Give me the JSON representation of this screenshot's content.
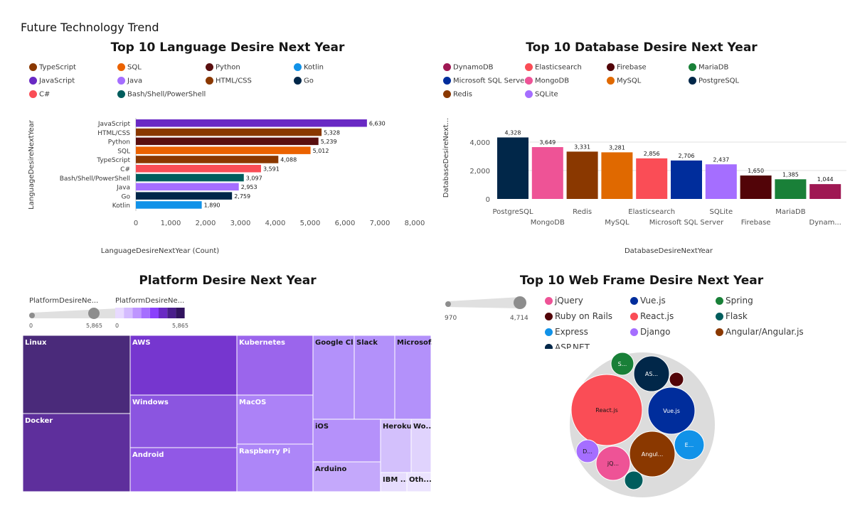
{
  "dashboard_title": "Future Technology Trend",
  "language_chart": {
    "title": "Top 10 Language Desire Next Year",
    "legend": [
      {
        "name": "TypeScript",
        "color": "#8a3800"
      },
      {
        "name": "SQL",
        "color": "#eb6200"
      },
      {
        "name": "Python",
        "color": "#5a0f0f"
      },
      {
        "name": "Kotlin",
        "color": "#1192e8"
      },
      {
        "name": "JavaScript",
        "color": "#6929c4"
      },
      {
        "name": "Java",
        "color": "#a56eff"
      },
      {
        "name": "HTML/CSS",
        "color": "#8a3800"
      },
      {
        "name": "Go",
        "color": "#012749"
      },
      {
        "name": "C#",
        "color": "#fa4d56"
      },
      {
        "name": "Bash/Shell/PowerShell",
        "color": "#005d5d"
      }
    ]
  },
  "database_chart": {
    "title": "Top 10 Database Desire Next Year",
    "legend": [
      {
        "name": "DynamoDB",
        "color": "#9f1853"
      },
      {
        "name": "Elasticsearch",
        "color": "#fa4d56"
      },
      {
        "name": "Firebase",
        "color": "#520408"
      },
      {
        "name": "MariaDB",
        "color": "#198038"
      },
      {
        "name": "Microsoft SQL Server",
        "color": "#002d9c"
      },
      {
        "name": "MongoDB",
        "color": "#ee5396"
      },
      {
        "name": "MySQL",
        "color": "#e06900"
      },
      {
        "name": "PostgreSQL",
        "color": "#012749"
      },
      {
        "name": "Redis",
        "color": "#8a3800"
      },
      {
        "name": "SQLite",
        "color": "#a56eff"
      }
    ]
  },
  "platform_chart": {
    "title": "Platform Desire Next Year",
    "size_legend_label": "PlatformDesireNe...",
    "color_legend_label": "PlatformDesireNe...",
    "range_min": "0",
    "range_max": "5,865"
  },
  "webframe_chart": {
    "title": "Top 10 Web Frame Desire Next Year",
    "size_min": "970",
    "size_max": "4,714",
    "legend": [
      {
        "name": "jQuery",
        "color": "#ee5396"
      },
      {
        "name": "Vue.js",
        "color": "#002d9c"
      },
      {
        "name": "Spring",
        "color": "#198038"
      },
      {
        "name": "Ruby on Rails",
        "color": "#520408"
      },
      {
        "name": "React.js",
        "color": "#fa4d56"
      },
      {
        "name": "Flask",
        "color": "#005d5d"
      },
      {
        "name": "Express",
        "color": "#1192e8"
      },
      {
        "name": "Django",
        "color": "#a56eff"
      },
      {
        "name": "Angular/Angular.js",
        "color": "#8a3800"
      },
      {
        "name": "ASP.NET",
        "color": "#012749"
      }
    ]
  },
  "chart_data": [
    {
      "type": "bar",
      "orientation": "horizontal",
      "title": "Top 10 Language Desire Next Year",
      "ylabel": "LanguageDesireNextYear",
      "xlabel": "LanguageDesireNextYear (Count)",
      "categories": [
        "JavaScript",
        "HTML/CSS",
        "Python",
        "SQL",
        "TypeScript",
        "C#",
        "Bash/Shell/PowerShell",
        "Java",
        "Go",
        "Kotlin"
      ],
      "values": [
        6630,
        5328,
        5239,
        5012,
        4088,
        3591,
        3097,
        2953,
        2759,
        1890
      ],
      "labels": [
        "6,630",
        "5,328",
        "5,239",
        "5,012",
        "4,088",
        "3,591",
        "3,097",
        "2,953",
        "2,759",
        "1,890"
      ],
      "colors": [
        "#6929c4",
        "#8a3800",
        "#5a0f0f",
        "#eb6200",
        "#8a3800",
        "#fa4d56",
        "#005d5d",
        "#a56eff",
        "#012749",
        "#1192e8"
      ],
      "xticks": [
        "0",
        "1,000",
        "2,000",
        "3,000",
        "4,000",
        "5,000",
        "6,000",
        "7,000",
        "8,000"
      ],
      "xlim": [
        0,
        8000
      ]
    },
    {
      "type": "bar",
      "orientation": "vertical",
      "title": "Top 10 Database Desire Next Year",
      "ylabel": "DatabaseDesireNext...",
      "xlabel": "DatabaseDesireNextYear",
      "categories": [
        "PostgreSQL",
        "MongoDB",
        "Redis",
        "MySQL",
        "Elasticsearch",
        "Microsoft SQL Server",
        "SQLite",
        "Firebase",
        "MariaDB",
        "Dynam..."
      ],
      "values": [
        4328,
        3649,
        3331,
        3281,
        2856,
        2706,
        2437,
        1650,
        1385,
        1044
      ],
      "labels": [
        "4,328",
        "3,649",
        "3,331",
        "3,281",
        "2,856",
        "2,706",
        "2,437",
        "1,650",
        "1,385",
        "1,044"
      ],
      "colors": [
        "#012749",
        "#ee5396",
        "#8a3800",
        "#e06900",
        "#fa4d56",
        "#002d9c",
        "#a56eff",
        "#520408",
        "#198038",
        "#9f1853"
      ],
      "yticks": [
        "0",
        "2,000",
        "4,000"
      ],
      "ylim": [
        0,
        5000
      ]
    },
    {
      "type": "treemap",
      "title": "Platform Desire Next Year",
      "items": [
        {
          "name": "Linux",
          "color": "#4a2a7a"
        },
        {
          "name": "Docker",
          "color": "#5e2f9c"
        },
        {
          "name": "AWS",
          "color": "#7636cf"
        },
        {
          "name": "Windows",
          "color": "#8b55e0"
        },
        {
          "name": "Android",
          "color": "#9158e6"
        },
        {
          "name": "Kubernetes",
          "color": "#9b65ec"
        },
        {
          "name": "MacOS",
          "color": "#ac82f7"
        },
        {
          "name": "Raspberry Pi",
          "color": "#ad86f8"
        },
        {
          "name": "Google Cl...",
          "color": "#b391fa"
        },
        {
          "name": "Slack",
          "color": "#b391fa"
        },
        {
          "name": "Microsof...",
          "color": "#b391fa"
        },
        {
          "name": "iOS",
          "color": "#b591fa"
        },
        {
          "name": "Arduino",
          "color": "#c4a8fb"
        },
        {
          "name": "Heroku",
          "color": "#d3c0fc"
        },
        {
          "name": "Wo...",
          "color": "#e0d3fd"
        },
        {
          "name": "IBM ...",
          "color": "#e6dcfd"
        },
        {
          "name": "Oth...",
          "color": "#ebe3fe"
        }
      ]
    },
    {
      "type": "bubble",
      "title": "Top 10 Web Frame Desire Next Year",
      "items": [
        {
          "name": "React.js",
          "label": "React.js",
          "color": "#fa4d56"
        },
        {
          "name": "Vue.js",
          "label": "Vue.js",
          "color": "#002d9c"
        },
        {
          "name": "Angular/Angular.js",
          "label": "Angul...",
          "color": "#8a3800"
        },
        {
          "name": "ASP.NET",
          "label": "AS...",
          "color": "#012749"
        },
        {
          "name": "Express",
          "label": "E...",
          "color": "#1192e8"
        },
        {
          "name": "jQuery",
          "label": "jQ...",
          "color": "#ee5396"
        },
        {
          "name": "Spring",
          "label": "S...",
          "color": "#198038"
        },
        {
          "name": "Django",
          "label": "D...",
          "color": "#a56eff"
        },
        {
          "name": "Flask",
          "label": "",
          "color": "#005d5d"
        },
        {
          "name": "Ruby on Rails",
          "label": "",
          "color": "#520408"
        }
      ]
    }
  ]
}
